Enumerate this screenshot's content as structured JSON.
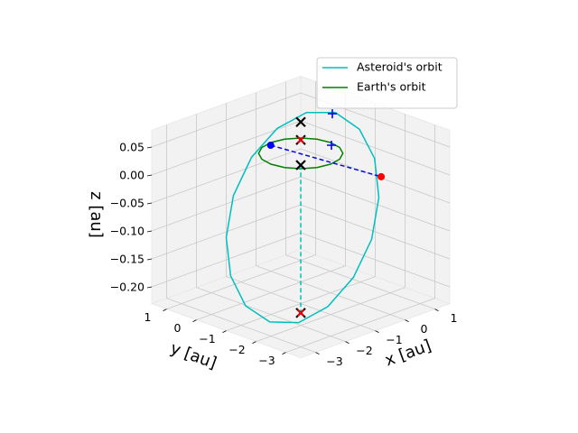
{
  "chart_data": {
    "type": "line3d",
    "xlabel": "x [au]",
    "ylabel": "y [au]",
    "zlabel": "z [au]",
    "xlim": [
      -3.5,
      1.5
    ],
    "ylim": [
      -3.5,
      1.5
    ],
    "zlim": [
      -0.23,
      0.08
    ],
    "xticks": [
      {
        "value": -3,
        "label": "−3"
      },
      {
        "value": -2,
        "label": "−2"
      },
      {
        "value": -1,
        "label": "−1"
      },
      0,
      1
    ],
    "yticks": [
      {
        "value": -3,
        "label": "−3"
      },
      {
        "value": -2,
        "label": "−2"
      },
      {
        "value": -1,
        "label": "−1"
      },
      0,
      1
    ],
    "zticks": [
      {
        "value": -0.2,
        "label": "−0.20"
      },
      {
        "value": -0.15,
        "label": "−0.15"
      },
      {
        "value": -0.1,
        "label": "−0.10"
      },
      {
        "value": -0.05,
        "label": "−0.05"
      },
      {
        "value": 0,
        "label": "0.00"
      },
      {
        "value": 0.05,
        "label": "0.05"
      }
    ],
    "grid": true,
    "legend": "upper right",
    "series": [
      {
        "name": "Asteroid's orbit",
        "color": "#00bfbf",
        "closed": true,
        "x": [
          0.58,
          0.91,
          0.95,
          0.69,
          0.19,
          -0.5,
          -1.25,
          -1.96,
          -2.52,
          -2.85,
          -2.88,
          -2.63,
          -2.13,
          -1.44,
          -0.69,
          0.02
        ],
        "y": [
          -0.58,
          -1.06,
          -1.53,
          -1.93,
          -2.19,
          -2.27,
          -2.16,
          -1.89,
          -1.48,
          -1,
          -0.53,
          -0.13,
          0.13,
          0.21,
          0.1,
          -0.17
        ],
        "z": [
          0.073,
          0.046,
          0.002,
          -0.055,
          -0.115,
          -0.168,
          -0.208,
          -0.228,
          -0.224,
          -0.198,
          -0.153,
          -0.097,
          -0.037,
          0.017,
          0.056,
          0.076
        ]
      },
      {
        "name": "Earth's orbit",
        "color": "#008000",
        "closed": true,
        "x": [
          1,
          0.924,
          0.707,
          0.383,
          0,
          -0.383,
          -0.707,
          -0.924,
          -1,
          -0.924,
          -0.707,
          -0.383,
          0,
          0.383,
          0.707,
          0.924
        ],
        "y": [
          0,
          0.383,
          0.707,
          0.924,
          1,
          0.924,
          0.707,
          0.383,
          0,
          -0.383,
          -0.707,
          -0.924,
          -1,
          -0.924,
          -0.707,
          -0.383
        ],
        "z": [
          0,
          0,
          0,
          0,
          0,
          0,
          0,
          0,
          0,
          0,
          0,
          0,
          0,
          0,
          0,
          0
        ]
      },
      {
        "color": "#0000ff",
        "linestyle": "dashed",
        "x": [
          -0.13,
          0.27
        ],
        "y": [
          0.88,
          -2.43
        ],
        "z": [
          0,
          0
        ]
      },
      {
        "color": "#00bfbf",
        "linestyle": "dashed",
        "x": [
          -1.92,
          -1.92
        ],
        "y": [
          -1.92,
          -1.92
        ],
        "z": [
          0.053,
          -0.211
        ]
      }
    ],
    "points": [
      {
        "marker": "x",
        "color": "#000000",
        "x": [
          0,
          0,
          0,
          -1.92
        ],
        "y": [
          0,
          0,
          0,
          -1.92
        ],
        "z": [
          0.056,
          0.024,
          -0.021,
          -0.211
        ]
      },
      {
        "marker": "x",
        "color": "#ff0000",
        "x": [
          0,
          -1.92
        ],
        "y": [
          0,
          -1.92
        ],
        "z": [
          0.024,
          -0.211
        ]
      },
      {
        "marker": "+",
        "color": "#0000ff",
        "x": [
          0.81,
          0.89
        ],
        "y": [
          -0.25,
          -0.14
        ],
        "z": [
          0.06,
          0
        ]
      },
      {
        "marker": "o",
        "color": "#0000ff",
        "x": [
          -0.13
        ],
        "y": [
          0.88
        ],
        "z": [
          0
        ]
      },
      {
        "marker": "o",
        "color": "#ff0000",
        "x": [
          0.27
        ],
        "y": [
          -2.43
        ],
        "z": [
          0
        ]
      }
    ]
  }
}
